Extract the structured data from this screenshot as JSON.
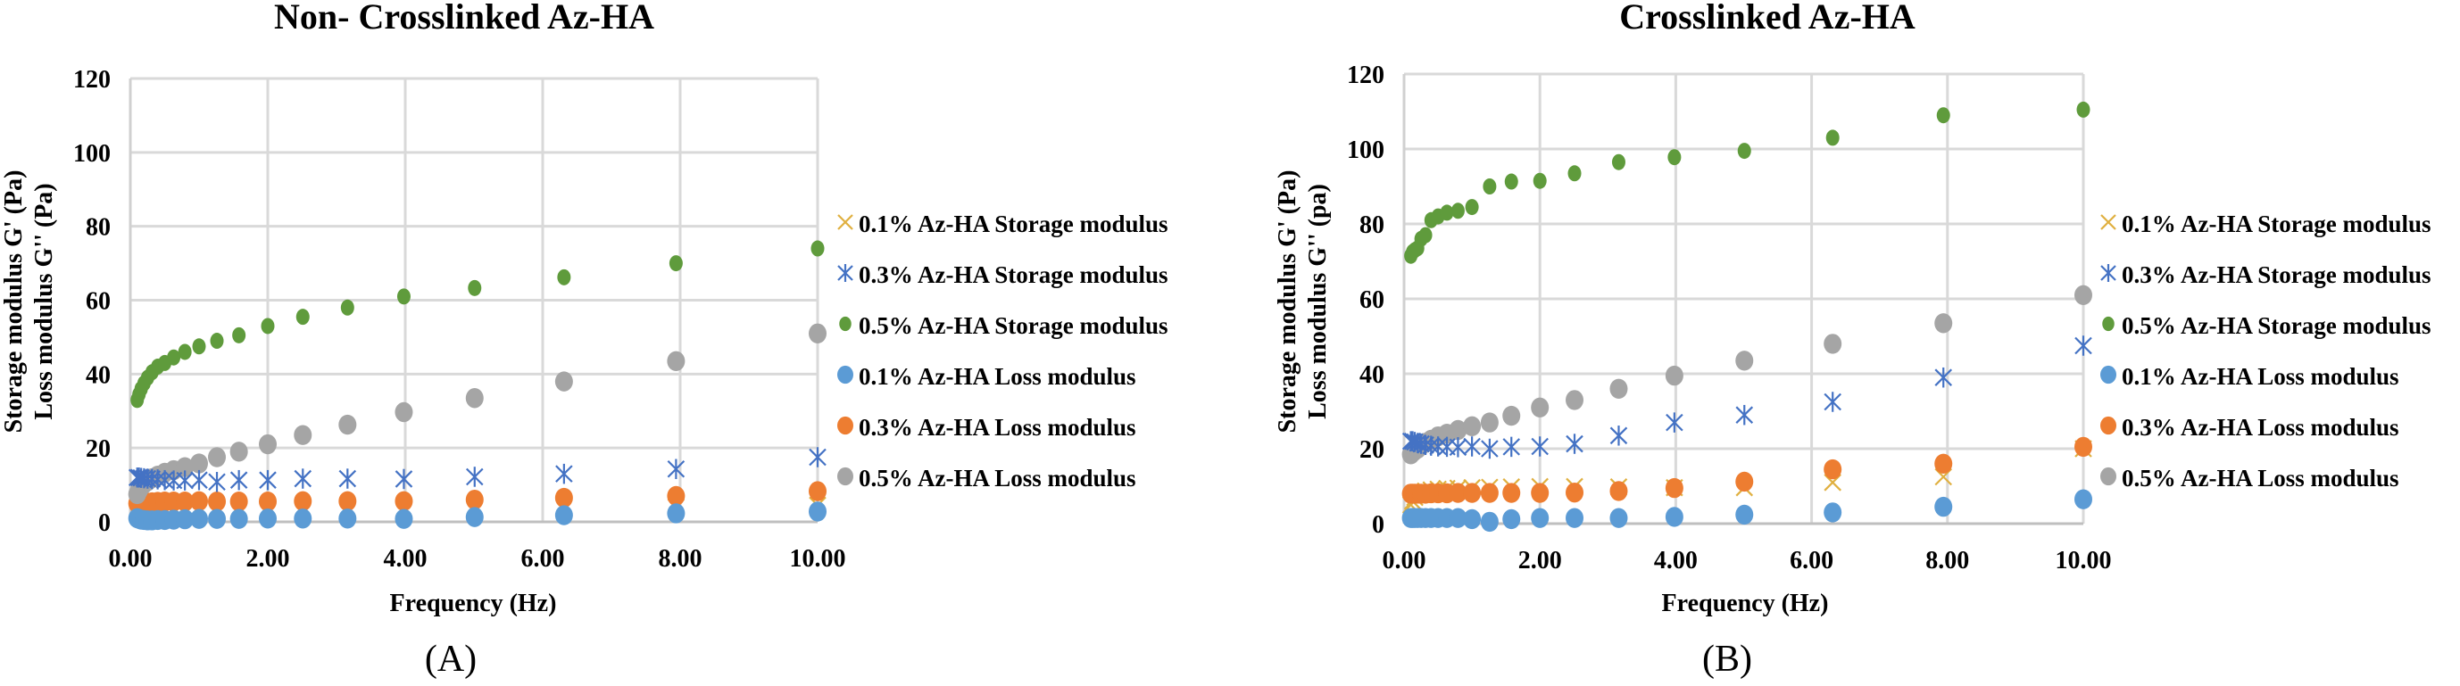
{
  "figure": {
    "panels": [
      "(A)",
      "(B)"
    ]
  },
  "chart_data": [
    {
      "type": "scatter",
      "panel_label": "(A)",
      "title": "Non- Crosslinked Az-HA",
      "xlabel": "Frequency (Hz)",
      "ylabel_lines": [
        "Storage modulus G' (Pa)",
        "Loss modulus G'' (Pa)"
      ],
      "xlim": [
        0,
        10
      ],
      "ylim": [
        0,
        120
      ],
      "xticks": [
        0,
        2,
        4,
        6,
        8,
        10
      ],
      "xtick_labels": [
        "0.00",
        "2.00",
        "4.00",
        "6.00",
        "8.00",
        "10.00"
      ],
      "yticks": [
        0,
        20,
        40,
        60,
        80,
        100,
        120
      ],
      "ytick_labels": [
        "0",
        "20",
        "40",
        "60",
        "80",
        "100",
        "120"
      ],
      "grid": true,
      "legend_position": "right",
      "x": [
        0.1,
        0.126,
        0.158,
        0.2,
        0.251,
        0.316,
        0.398,
        0.501,
        0.631,
        0.794,
        1.0,
        1.26,
        1.58,
        2.0,
        2.51,
        3.16,
        3.98,
        5.01,
        6.31,
        7.94,
        10.0
      ],
      "series": [
        {
          "name": "0.1% Az-HA Storage modulus",
          "marker": "x",
          "color": "#e0b040",
          "values": [
            2.5,
            2.6,
            2.7,
            2.8,
            2.9,
            3.0,
            3.0,
            3.1,
            3.1,
            3.2,
            3.2,
            3.3,
            3.3,
            3.4,
            3.4,
            3.5,
            3.5,
            3.6,
            3.8,
            4.0,
            4.5
          ]
        },
        {
          "name": "0.3% Az-HA Storage modulus",
          "marker": "asterisk",
          "color": "#4472c4",
          "values": [
            12.0,
            12.0,
            11.9,
            11.8,
            11.7,
            11.6,
            11.5,
            11.3,
            11.2,
            11.2,
            11.3,
            10.8,
            11.3,
            11.3,
            11.7,
            11.7,
            11.6,
            12.2,
            13.0,
            14.3,
            17.5
          ]
        },
        {
          "name": "0.5% Az-HA Storage modulus",
          "marker": "dot",
          "color": "#5f9b3c",
          "values": [
            33.0,
            34.5,
            36.0,
            37.5,
            39.0,
            40.5,
            42.0,
            43.0,
            44.5,
            46.0,
            47.5,
            49.0,
            50.5,
            53.0,
            55.5,
            58.0,
            61.0,
            63.3,
            66.2,
            70.0,
            74.0
          ]
        },
        {
          "name": "0.1% Az-HA Loss modulus",
          "marker": "circle",
          "color": "#5b9bd5",
          "values": [
            1.0,
            0.8,
            0.6,
            0.5,
            0.4,
            0.4,
            0.5,
            0.5,
            0.6,
            0.7,
            0.8,
            0.8,
            0.8,
            0.9,
            0.9,
            0.9,
            0.8,
            1.3,
            1.8,
            2.3,
            2.8
          ]
        },
        {
          "name": "0.3% Az-HA Loss modulus",
          "marker": "circle",
          "color": "#ed7d31",
          "values": [
            5.0,
            5.0,
            5.0,
            5.1,
            5.2,
            5.3,
            5.4,
            5.5,
            5.5,
            5.5,
            5.6,
            5.5,
            5.5,
            5.5,
            5.6,
            5.6,
            5.6,
            6.0,
            6.5,
            7.0,
            8.3
          ]
        },
        {
          "name": "0.5% Az-HA Loss modulus",
          "marker": "circle",
          "color": "#a5a5a5",
          "values": [
            7.5,
            8.5,
            9.5,
            10.3,
            11.0,
            11.8,
            12.5,
            13.3,
            14.0,
            14.8,
            15.8,
            17.5,
            19.0,
            21.0,
            23.5,
            26.3,
            29.7,
            33.5,
            38.0,
            43.5,
            51.0
          ]
        }
      ]
    },
    {
      "type": "scatter",
      "panel_label": "(B)",
      "title": "Crosslinked Az-HA",
      "xlabel": "Frequency (Hz)",
      "ylabel_lines": [
        "Storage modulus G' (Pa)",
        "Loss modulus G'' (pa)"
      ],
      "xlim": [
        0,
        10
      ],
      "ylim": [
        0,
        120
      ],
      "xticks": [
        0,
        2,
        4,
        6,
        8,
        10
      ],
      "xtick_labels": [
        "0.00",
        "2.00",
        "4.00",
        "6.00",
        "8.00",
        "10.00"
      ],
      "yticks": [
        0,
        20,
        40,
        60,
        80,
        100,
        120
      ],
      "ytick_labels": [
        "0",
        "20",
        "40",
        "60",
        "80",
        "100",
        "120"
      ],
      "grid": true,
      "legend_position": "right",
      "x": [
        0.1,
        0.126,
        0.158,
        0.2,
        0.251,
        0.316,
        0.398,
        0.501,
        0.631,
        0.794,
        1.0,
        1.26,
        1.58,
        2.0,
        2.51,
        3.16,
        3.98,
        5.01,
        6.31,
        7.94,
        10.0
      ],
      "series": [
        {
          "name": "0.1% Az-HA Storage modulus",
          "marker": "x",
          "color": "#e0b040",
          "values": [
            5.0,
            6.0,
            7.0,
            7.8,
            8.3,
            8.7,
            9.0,
            9.2,
            9.4,
            9.5,
            9.6,
            9.7,
            9.8,
            9.9,
            9.9,
            9.8,
            9.6,
            9.6,
            11.0,
            12.5,
            20.0
          ]
        },
        {
          "name": "0.3% Az-HA Storage modulus",
          "marker": "asterisk",
          "color": "#4472c4",
          "values": [
            22.0,
            22.0,
            21.8,
            21.5,
            21.3,
            21.0,
            20.8,
            20.6,
            20.5,
            20.4,
            20.6,
            20.0,
            20.5,
            20.6,
            21.3,
            23.5,
            27.0,
            29.0,
            32.5,
            39.0,
            47.5
          ]
        },
        {
          "name": "0.5% Az-HA Storage modulus",
          "marker": "dot",
          "color": "#5f9b3c",
          "values": [
            71.5,
            72.5,
            73.0,
            73.5,
            76.0,
            77.0,
            81.0,
            82.0,
            83.0,
            83.5,
            84.5,
            90.0,
            91.3,
            91.5,
            93.5,
            96.5,
            97.8,
            99.5,
            103.0,
            109.0,
            110.5
          ]
        },
        {
          "name": "0.1% Az-HA Loss modulus",
          "marker": "circle",
          "color": "#5b9bd5",
          "values": [
            1.5,
            1.5,
            1.5,
            1.5,
            1.5,
            1.5,
            1.5,
            1.5,
            1.5,
            1.5,
            1.2,
            0.5,
            1.2,
            1.5,
            1.5,
            1.5,
            1.8,
            2.4,
            3.0,
            4.5,
            6.5
          ]
        },
        {
          "name": "0.3% Az-HA Loss modulus",
          "marker": "circle",
          "color": "#ed7d31",
          "values": [
            8.0,
            8.0,
            8.0,
            8.0,
            8.0,
            8.0,
            8.1,
            8.1,
            8.1,
            8.2,
            8.2,
            8.2,
            8.2,
            8.2,
            8.3,
            8.7,
            9.5,
            11.2,
            14.5,
            16.0,
            20.5
          ]
        },
        {
          "name": "0.5% Az-HA Loss modulus",
          "marker": "circle",
          "color": "#a5a5a5",
          "values": [
            18.5,
            19.0,
            19.5,
            20.0,
            20.8,
            21.6,
            22.4,
            23.3,
            24.0,
            25.0,
            26.0,
            27.0,
            28.8,
            31.0,
            33.0,
            36.0,
            39.5,
            43.5,
            48.0,
            53.5,
            61.0
          ]
        }
      ]
    }
  ]
}
